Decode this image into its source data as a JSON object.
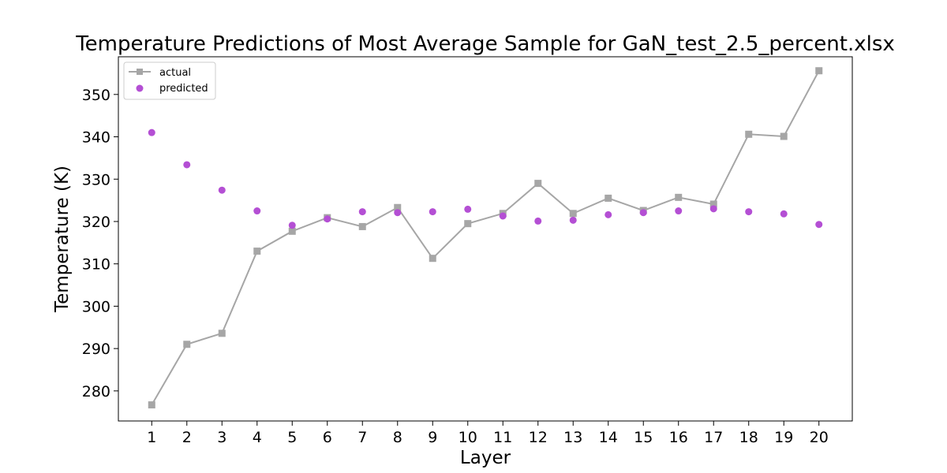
{
  "chart_data": {
    "type": "line",
    "title": "Temperature Predictions of Most Average Sample for GaN_test_2.5_percent.xlsx",
    "xlabel": "Layer",
    "ylabel": "Temperature (K)",
    "x": [
      1,
      2,
      3,
      4,
      5,
      6,
      7,
      8,
      9,
      10,
      11,
      12,
      13,
      14,
      15,
      16,
      17,
      18,
      19,
      20
    ],
    "xlim": [
      0.05,
      20.95
    ],
    "ylim": [
      272.9,
      358.9
    ],
    "yticks": [
      280,
      290,
      300,
      310,
      320,
      330,
      340,
      350
    ],
    "grid": false,
    "legend_position": "top-left",
    "series": [
      {
        "name": "actual",
        "style": "line-square",
        "color": "#a6a6a6",
        "values": [
          276.7,
          291.0,
          293.6,
          313.0,
          317.7,
          320.9,
          318.8,
          323.3,
          311.3,
          319.5,
          321.9,
          329.0,
          321.9,
          325.5,
          322.6,
          325.7,
          324.1,
          340.6,
          340.1,
          355.6
        ]
      },
      {
        "name": "predicted",
        "style": "scatter-circle",
        "color": "#b44fd4",
        "values": [
          341.0,
          333.4,
          327.4,
          322.5,
          319.1,
          320.6,
          322.3,
          322.1,
          322.3,
          322.9,
          321.3,
          320.1,
          320.3,
          321.6,
          322.1,
          322.5,
          323.0,
          322.3,
          321.8,
          319.3
        ]
      }
    ]
  }
}
